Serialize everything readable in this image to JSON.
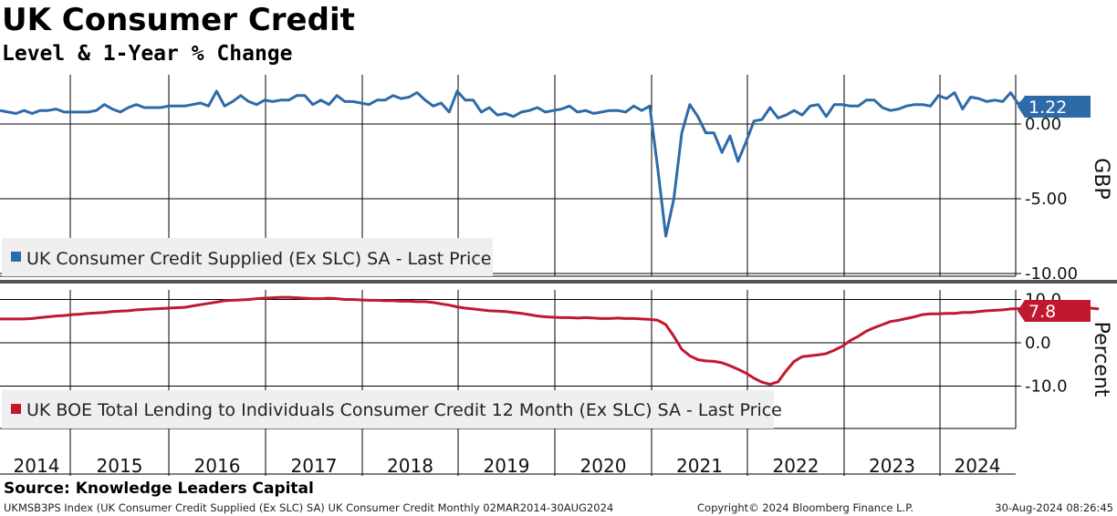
{
  "title": "UK Consumer Credit",
  "subtitle": "Level & 1-Year % Change",
  "source": "Source: Knowledge Leaders Capital",
  "footer": {
    "left": "UKMSB3PS Index (UK Consumer Credit Supplied (Ex SLC) SA) UK Consumer Credit  Monthly 02MAR2014-30AUG2024",
    "middle": "Copyright© 2024 Bloomberg Finance L.P.",
    "right": "30-Aug-2024 08:26:45"
  },
  "colors": {
    "top_series": "#2e6aa8",
    "bottom_series": "#c0182f",
    "legend_bg": "#efefef"
  },
  "chart_data": [
    {
      "type": "line",
      "ylabel": "GBP",
      "y_ticks": [
        "0.00",
        "-5.00",
        "-10.00"
      ],
      "ylim": [
        -10.5,
        2.8
      ],
      "x_ticks": [
        "2014",
        "2015",
        "2016",
        "2017",
        "2018",
        "2019",
        "2020",
        "2021",
        "2022",
        "2023",
        "2024"
      ],
      "x_start": "2014-03",
      "x_end": "2024-07",
      "legend": "UK Consumer Credit Supplied (Ex SLC) SA - Last Price",
      "last_value_label": "1.22",
      "series": [
        {
          "name": "UK Consumer Credit Supplied (Ex SLC) SA - Last Price",
          "values": [
            0.9,
            0.8,
            0.7,
            0.9,
            0.7,
            0.9,
            0.9,
            1.0,
            0.8,
            0.8,
            0.8,
            0.8,
            0.9,
            1.3,
            1.0,
            0.8,
            1.1,
            1.3,
            1.1,
            1.1,
            1.1,
            1.2,
            1.2,
            1.2,
            1.3,
            1.4,
            1.2,
            2.2,
            1.2,
            1.5,
            1.9,
            1.5,
            1.3,
            1.6,
            1.5,
            1.6,
            1.6,
            1.9,
            1.9,
            1.3,
            1.6,
            1.3,
            1.9,
            1.5,
            1.5,
            1.4,
            1.3,
            1.6,
            1.6,
            1.9,
            1.7,
            1.8,
            2.1,
            1.6,
            1.2,
            1.4,
            0.8,
            2.2,
            1.6,
            1.6,
            0.8,
            1.1,
            0.6,
            0.7,
            0.5,
            0.8,
            0.9,
            1.1,
            0.8,
            0.9,
            1.0,
            1.2,
            0.8,
            0.9,
            0.7,
            0.8,
            0.9,
            0.9,
            0.8,
            1.2,
            0.9,
            1.2,
            -3.0,
            -7.5,
            -5.0,
            -0.6,
            1.3,
            0.5,
            -0.6,
            -0.6,
            -1.9,
            -0.8,
            -2.5,
            -1.2,
            0.2,
            0.3,
            1.1,
            0.4,
            0.6,
            0.9,
            0.6,
            1.2,
            1.3,
            0.5,
            1.3,
            1.3,
            1.2,
            1.2,
            1.6,
            1.6,
            1.1,
            0.9,
            1.0,
            1.2,
            1.3,
            1.3,
            1.2,
            1.9,
            1.7,
            2.1,
            1.0,
            1.8,
            1.7,
            1.5,
            1.6,
            1.5,
            2.1,
            1.3,
            1.8,
            1.4,
            1.5,
            0.9,
            1.5,
            0.9,
            1.22
          ]
        }
      ]
    },
    {
      "type": "line",
      "ylabel": "Percent",
      "y_ticks": [
        "10.0",
        "0.0",
        "-10.0"
      ],
      "ylim": [
        -15.5,
        11.0
      ],
      "x_ticks": [
        "2014",
        "2015",
        "2016",
        "2017",
        "2018",
        "2019",
        "2020",
        "2021",
        "2022",
        "2023",
        "2024"
      ],
      "x_start": "2014-03",
      "x_end": "2024-07",
      "legend": "UK BOE Total Lending to Individuals Consumer Credit 12 Month (Ex SLC) SA - Last Price",
      "last_value_label": "7.8",
      "series": [
        {
          "name": "UK BOE Total Lending to Individuals Consumer Credit 12 Month (Ex SLC) SA - Last Price",
          "values": [
            5.5,
            5.5,
            5.5,
            5.5,
            5.6,
            5.8,
            6.0,
            6.2,
            6.3,
            6.5,
            6.6,
            6.8,
            6.9,
            7.0,
            7.2,
            7.3,
            7.4,
            7.6,
            7.7,
            7.8,
            7.9,
            8.0,
            8.1,
            8.2,
            8.5,
            8.8,
            9.1,
            9.4,
            9.7,
            9.8,
            9.9,
            10.0,
            10.2,
            10.3,
            10.4,
            10.5,
            10.5,
            10.4,
            10.3,
            10.2,
            10.2,
            10.3,
            10.2,
            10.0,
            10.0,
            9.9,
            9.8,
            9.8,
            9.7,
            9.7,
            9.6,
            9.6,
            9.5,
            9.5,
            9.3,
            9.0,
            8.7,
            8.3,
            8.0,
            7.8,
            7.6,
            7.4,
            7.3,
            7.2,
            7.0,
            6.8,
            6.5,
            6.2,
            6.0,
            5.9,
            5.8,
            5.8,
            5.7,
            5.8,
            5.7,
            5.6,
            5.6,
            5.7,
            5.6,
            5.6,
            5.5,
            5.4,
            5.2,
            4.2,
            1.5,
            -1.5,
            -3.0,
            -3.9,
            -4.2,
            -4.3,
            -4.6,
            -5.3,
            -6.1,
            -7.0,
            -8.2,
            -9.1,
            -9.6,
            -9.0,
            -6.5,
            -4.3,
            -3.2,
            -3.0,
            -2.8,
            -2.5,
            -1.7,
            -0.8,
            0.5,
            1.5,
            2.7,
            3.5,
            4.2,
            4.9,
            5.2,
            5.6,
            6.0,
            6.5,
            6.7,
            6.7,
            6.8,
            6.8,
            7.0,
            7.0,
            7.2,
            7.4,
            7.5,
            7.6,
            7.8,
            7.9,
            8.1,
            8.3,
            8.4,
            8.6,
            8.6,
            8.5,
            8.3,
            8.2,
            8.0,
            7.8
          ]
        }
      ]
    }
  ]
}
